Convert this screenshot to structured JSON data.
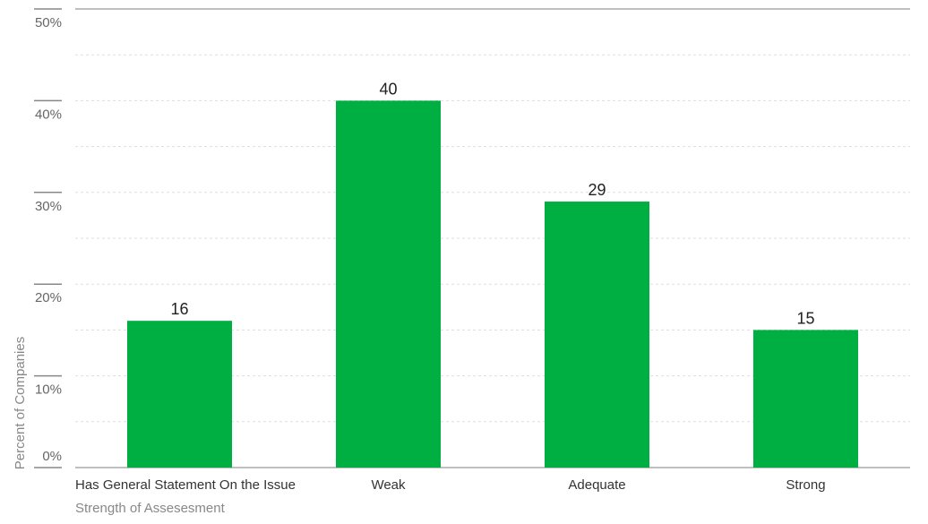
{
  "chart_data": {
    "type": "bar",
    "categories": [
      "Has General Statement On the Issue",
      "Weak",
      "Adequate",
      "Strong"
    ],
    "values": [
      16,
      40,
      29,
      15
    ],
    "data_labels": [
      "16",
      "40",
      "29",
      "15"
    ],
    "xlabel": "Strength of Assesesment",
    "ylabel": "Percent of Companies",
    "ylim": [
      0,
      50
    ],
    "yticks": [
      0,
      10,
      20,
      30,
      40,
      50
    ],
    "ytick_labels": [
      "0%",
      "10%",
      "20%",
      "30%",
      "40%",
      "50%"
    ],
    "grid": true,
    "bar_color": "#00AF41"
  }
}
